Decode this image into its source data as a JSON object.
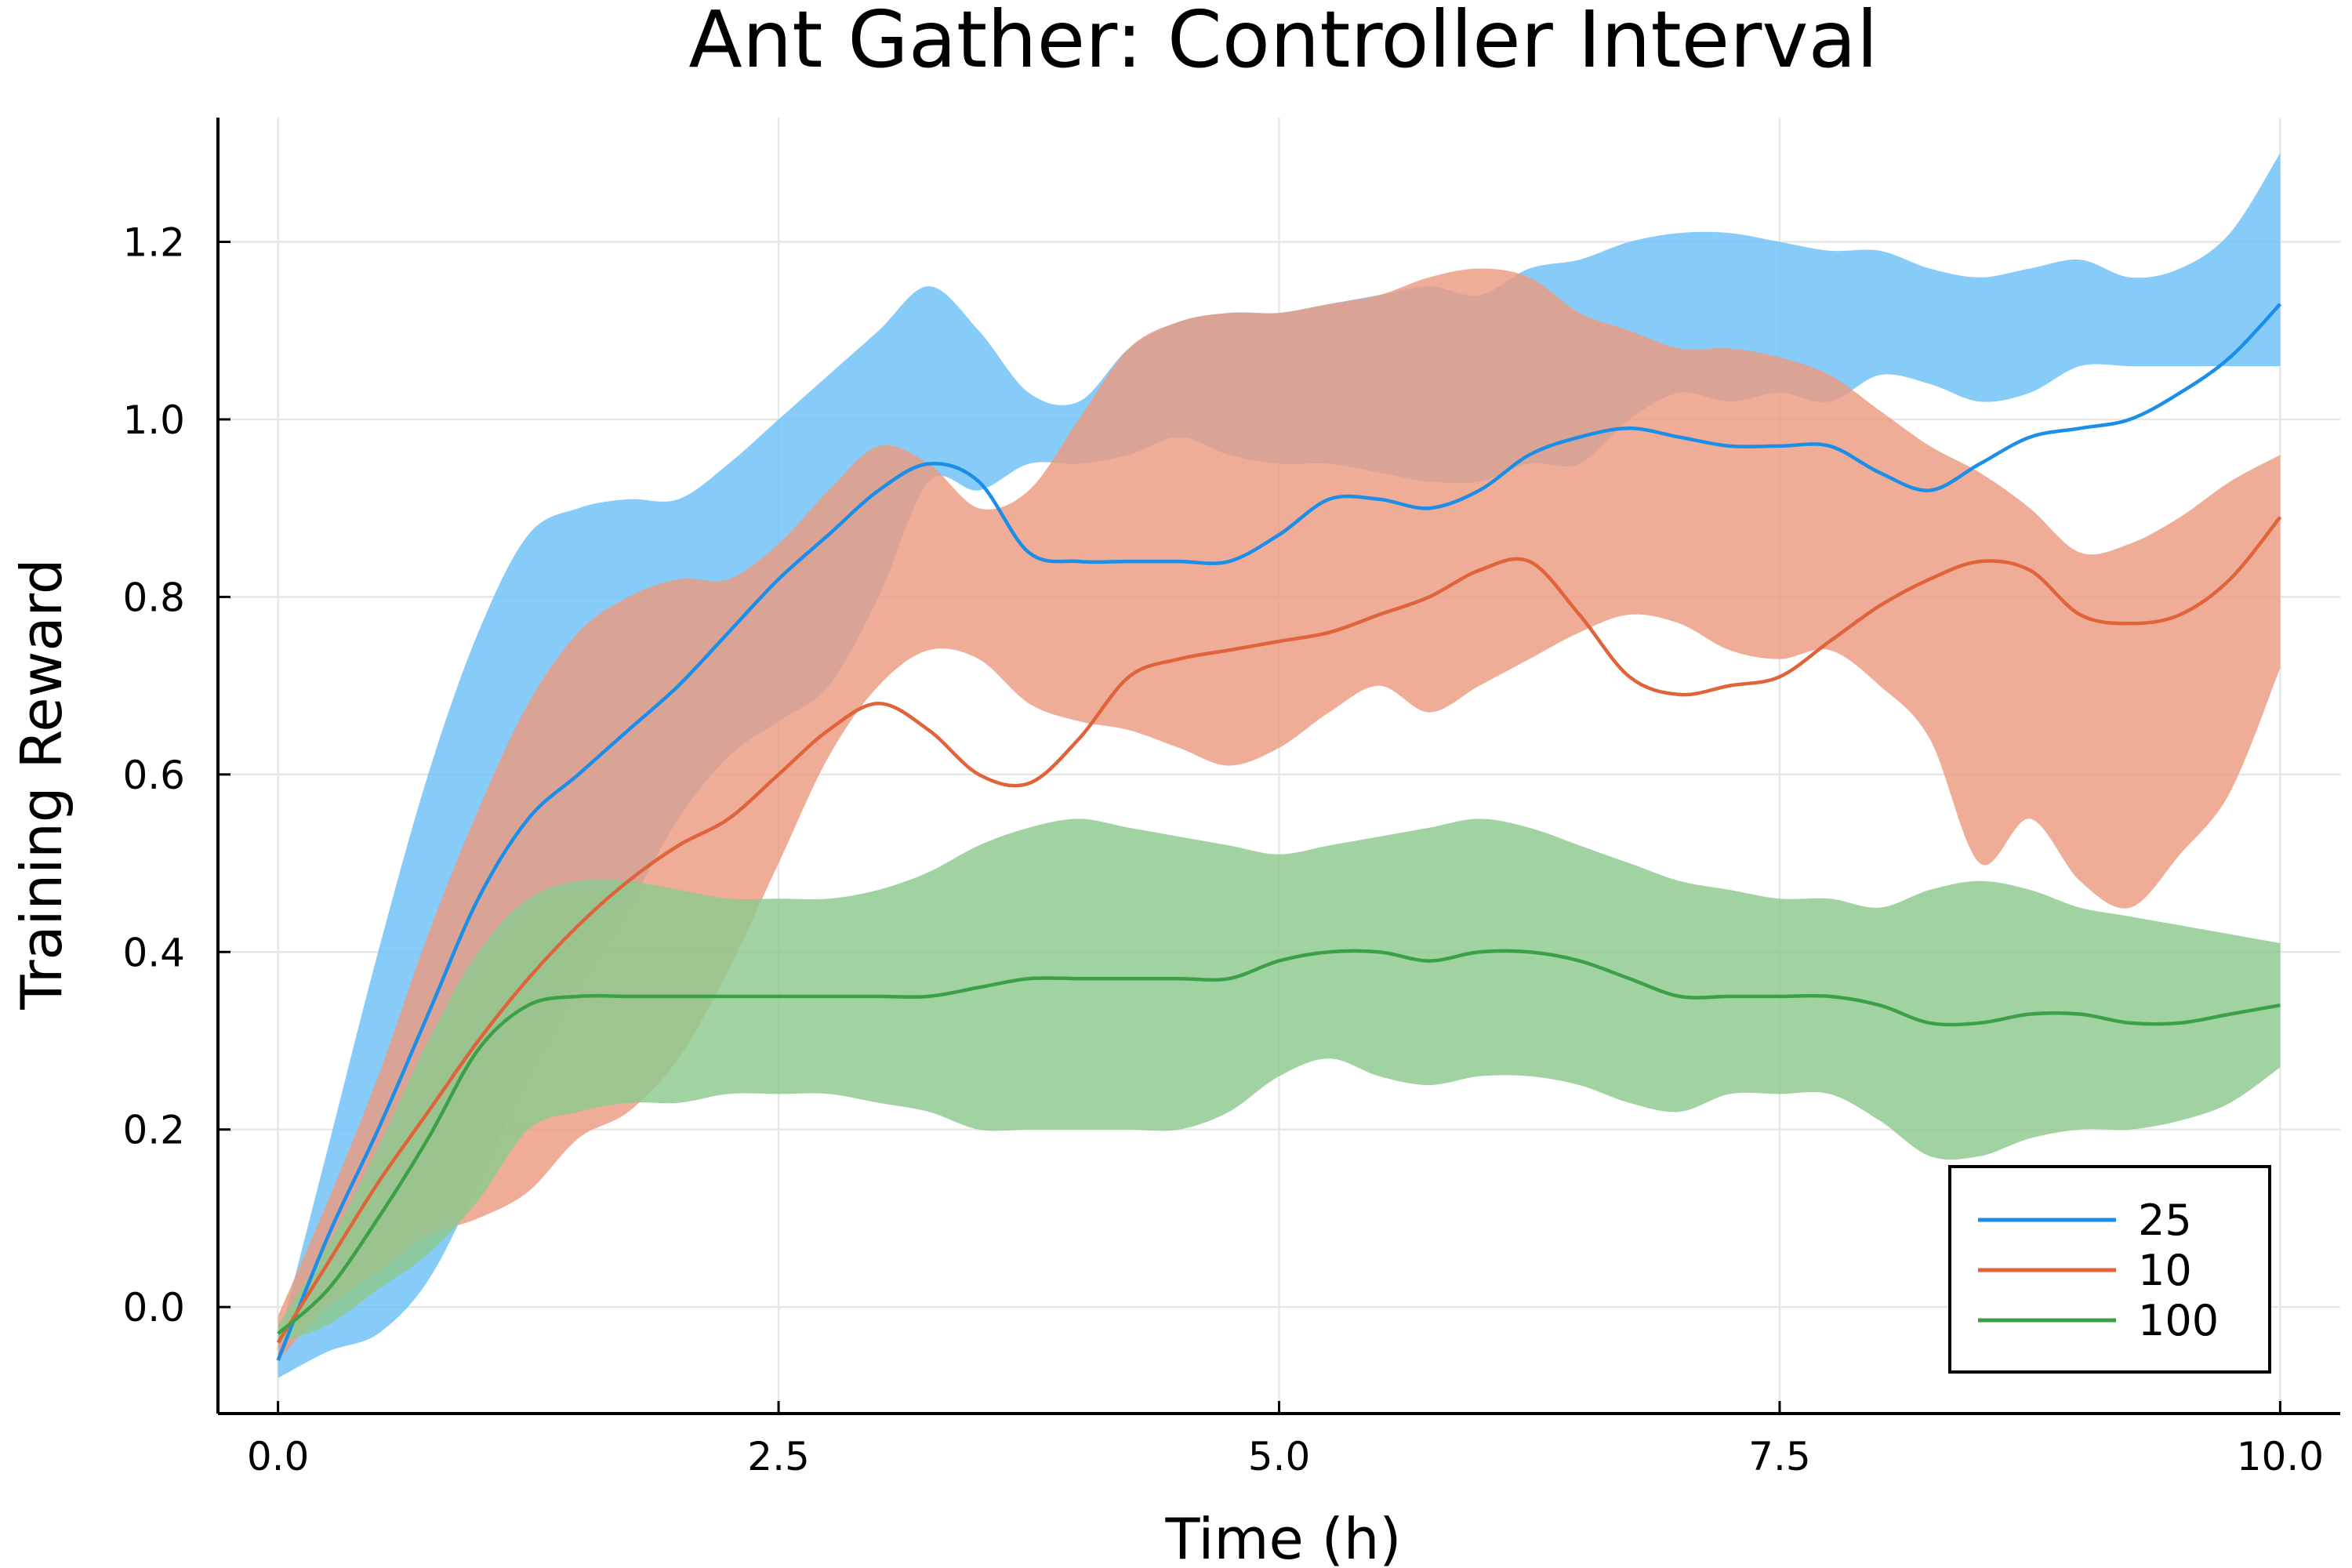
{
  "chart_data": {
    "type": "line",
    "title": "Ant Gather: Controller Interval",
    "xlabel": "Time (h)",
    "ylabel": "Training Reward",
    "xlim": [
      -0.3,
      10.3
    ],
    "ylim": [
      -0.12,
      1.34
    ],
    "xticks": [
      0.0,
      2.5,
      5.0,
      7.5,
      10.0
    ],
    "xtick_labels": [
      "0.0",
      "2.5",
      "5.0",
      "7.5",
      "10.0"
    ],
    "yticks": [
      0.0,
      0.2,
      0.4,
      0.6,
      0.8,
      1.0,
      1.2
    ],
    "ytick_labels": [
      "0.0",
      "0.2",
      "0.4",
      "0.6",
      "0.8",
      "1.0",
      "1.2"
    ],
    "grid": true,
    "legend_position": "bottom-right",
    "x": [
      0,
      0.25,
      0.5,
      0.75,
      1.0,
      1.25,
      1.5,
      1.75,
      2.0,
      2.25,
      2.5,
      2.75,
      3.0,
      3.25,
      3.5,
      3.75,
      4.0,
      4.25,
      4.5,
      4.75,
      5.0,
      5.25,
      5.5,
      5.75,
      6.0,
      6.25,
      6.5,
      6.75,
      7.0,
      7.25,
      7.5,
      7.75,
      8.0,
      8.25,
      8.5,
      8.75,
      9.0,
      9.25,
      9.5,
      9.75,
      10.0
    ],
    "series": [
      {
        "name": "25",
        "color": "#1a8ee8",
        "band_color": "#6cbff8",
        "mean": [
          -0.06,
          0.08,
          0.2,
          0.33,
          0.46,
          0.55,
          0.6,
          0.65,
          0.7,
          0.76,
          0.82,
          0.87,
          0.92,
          0.95,
          0.93,
          0.85,
          0.84,
          0.84,
          0.84,
          0.84,
          0.87,
          0.91,
          0.91,
          0.9,
          0.92,
          0.96,
          0.98,
          0.99,
          0.98,
          0.97,
          0.97,
          0.97,
          0.94,
          0.92,
          0.95,
          0.98,
          0.99,
          1.0,
          1.03,
          1.07,
          1.13
        ],
        "upper": [
          -0.04,
          0.18,
          0.4,
          0.6,
          0.76,
          0.87,
          0.9,
          0.91,
          0.91,
          0.95,
          1.0,
          1.05,
          1.1,
          1.15,
          1.1,
          1.03,
          1.02,
          1.08,
          1.11,
          1.12,
          1.12,
          1.13,
          1.14,
          1.15,
          1.14,
          1.17,
          1.18,
          1.2,
          1.21,
          1.21,
          1.2,
          1.19,
          1.19,
          1.17,
          1.16,
          1.17,
          1.18,
          1.16,
          1.17,
          1.21,
          1.3
        ],
        "lower": [
          -0.08,
          -0.05,
          -0.03,
          0.03,
          0.14,
          0.26,
          0.36,
          0.45,
          0.55,
          0.62,
          0.66,
          0.7,
          0.8,
          0.93,
          0.92,
          0.95,
          0.95,
          0.96,
          0.98,
          0.96,
          0.95,
          0.95,
          0.94,
          0.93,
          0.93,
          0.95,
          0.95,
          1.0,
          1.03,
          1.02,
          1.03,
          1.02,
          1.05,
          1.04,
          1.02,
          1.03,
          1.06,
          1.06,
          1.06,
          1.06,
          1.06
        ]
      },
      {
        "name": "10",
        "color": "#e0633a",
        "band_color": "#eb9b80",
        "mean": [
          -0.04,
          0.05,
          0.14,
          0.22,
          0.3,
          0.37,
          0.43,
          0.48,
          0.52,
          0.55,
          0.6,
          0.65,
          0.68,
          0.65,
          0.6,
          0.59,
          0.64,
          0.71,
          0.73,
          0.74,
          0.75,
          0.76,
          0.78,
          0.8,
          0.83,
          0.84,
          0.78,
          0.71,
          0.69,
          0.7,
          0.71,
          0.75,
          0.79,
          0.82,
          0.84,
          0.83,
          0.78,
          0.77,
          0.78,
          0.82,
          0.89
        ],
        "upper": [
          -0.01,
          0.12,
          0.26,
          0.42,
          0.56,
          0.68,
          0.76,
          0.8,
          0.82,
          0.82,
          0.86,
          0.92,
          0.97,
          0.95,
          0.9,
          0.92,
          1.0,
          1.08,
          1.11,
          1.12,
          1.12,
          1.13,
          1.14,
          1.16,
          1.17,
          1.16,
          1.12,
          1.1,
          1.08,
          1.08,
          1.07,
          1.05,
          1.01,
          0.97,
          0.94,
          0.9,
          0.85,
          0.86,
          0.89,
          0.93,
          0.96
        ],
        "lower": [
          -0.06,
          0.0,
          0.04,
          0.08,
          0.1,
          0.13,
          0.19,
          0.22,
          0.28,
          0.38,
          0.5,
          0.62,
          0.7,
          0.74,
          0.73,
          0.68,
          0.66,
          0.65,
          0.63,
          0.61,
          0.63,
          0.67,
          0.7,
          0.67,
          0.7,
          0.73,
          0.76,
          0.78,
          0.77,
          0.74,
          0.73,
          0.74,
          0.7,
          0.64,
          0.5,
          0.55,
          0.48,
          0.45,
          0.51,
          0.58,
          0.72
        ]
      },
      {
        "name": "100",
        "color": "#3ba048",
        "band_color": "#8cc98e",
        "mean": [
          -0.03,
          0.02,
          0.1,
          0.19,
          0.29,
          0.34,
          0.35,
          0.35,
          0.35,
          0.35,
          0.35,
          0.35,
          0.35,
          0.35,
          0.36,
          0.37,
          0.37,
          0.37,
          0.37,
          0.37,
          0.39,
          0.4,
          0.4,
          0.39,
          0.4,
          0.4,
          0.39,
          0.37,
          0.35,
          0.35,
          0.35,
          0.35,
          0.34,
          0.32,
          0.32,
          0.33,
          0.33,
          0.32,
          0.32,
          0.33,
          0.34
        ],
        "upper": [
          -0.02,
          0.07,
          0.18,
          0.3,
          0.4,
          0.46,
          0.48,
          0.48,
          0.47,
          0.46,
          0.46,
          0.46,
          0.47,
          0.49,
          0.52,
          0.54,
          0.55,
          0.54,
          0.53,
          0.52,
          0.51,
          0.52,
          0.53,
          0.54,
          0.55,
          0.54,
          0.52,
          0.5,
          0.48,
          0.47,
          0.46,
          0.46,
          0.45,
          0.47,
          0.48,
          0.47,
          0.45,
          0.44,
          0.43,
          0.42,
          0.41
        ],
        "lower": [
          -0.04,
          -0.02,
          0.02,
          0.06,
          0.12,
          0.2,
          0.22,
          0.23,
          0.23,
          0.24,
          0.24,
          0.24,
          0.23,
          0.22,
          0.2,
          0.2,
          0.2,
          0.2,
          0.2,
          0.22,
          0.26,
          0.28,
          0.26,
          0.25,
          0.26,
          0.26,
          0.25,
          0.23,
          0.22,
          0.24,
          0.24,
          0.24,
          0.21,
          0.17,
          0.17,
          0.19,
          0.2,
          0.2,
          0.21,
          0.23,
          0.27
        ]
      }
    ]
  }
}
